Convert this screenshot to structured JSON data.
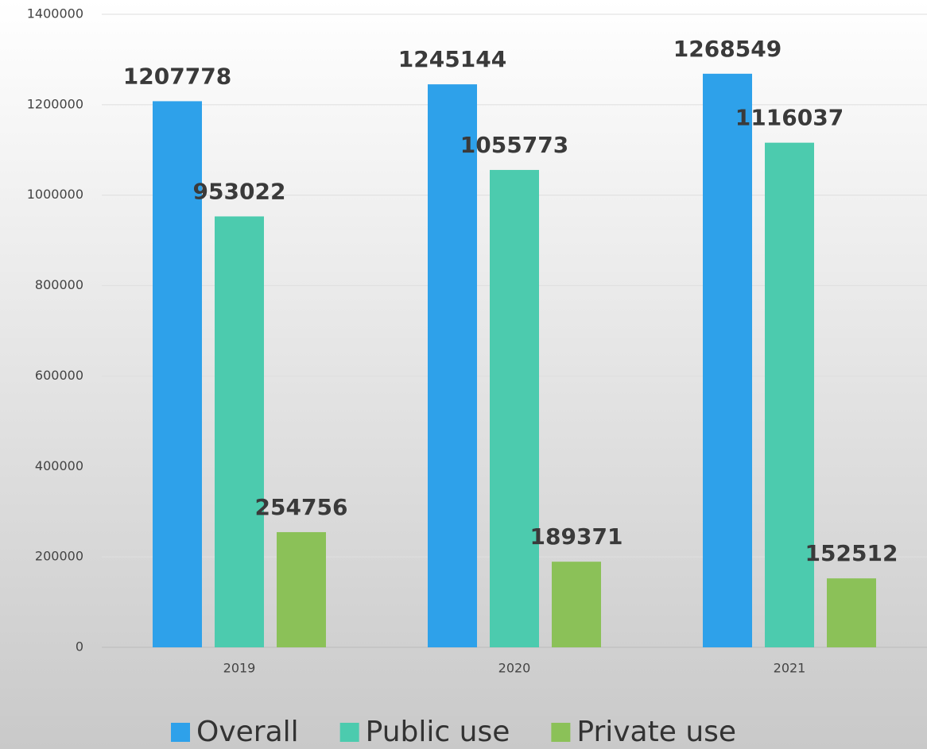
{
  "chart_data": {
    "type": "bar",
    "categories": [
      "2019",
      "2020",
      "2021"
    ],
    "series": [
      {
        "name": "Overall",
        "color": "#2ea1ea",
        "values": [
          1207778,
          1245144,
          1268549
        ]
      },
      {
        "name": "Public use",
        "color": "#4ccbae",
        "values": [
          953022,
          1055773,
          1116037
        ]
      },
      {
        "name": "Private use",
        "color": "#8bc158",
        "values": [
          254756,
          189371,
          152512
        ]
      }
    ],
    "ylim": [
      0,
      1400000
    ],
    "yticks": [
      0,
      200000,
      400000,
      600000,
      800000,
      1000000,
      1200000,
      1400000
    ],
    "grid": true,
    "legend": "bottom"
  }
}
